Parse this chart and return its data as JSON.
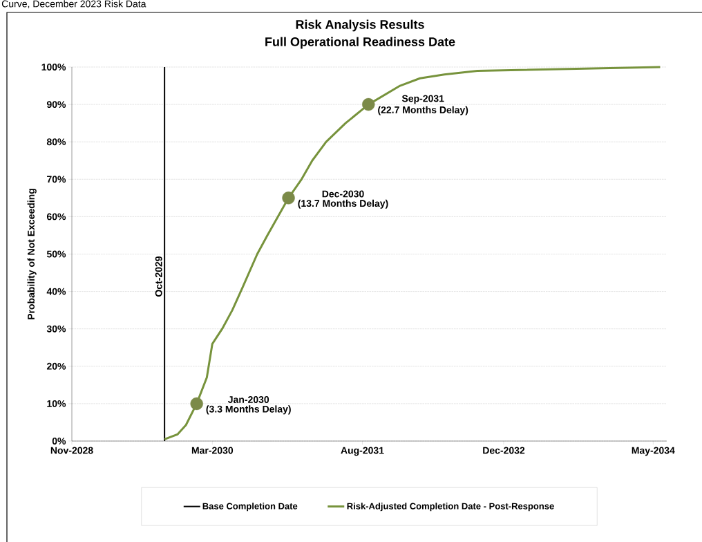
{
  "chart_data": {
    "type": "line",
    "title": "Risk Analysis Results",
    "subtitle": "Full Operational Readiness Date",
    "ylabel": "Probability of Not Exceeding",
    "xlim": [
      "2028-11-15",
      "2034-07-01"
    ],
    "xticks": [
      {
        "value": "2028-11-15",
        "label": "Nov-2028"
      },
      {
        "value": "2030-03-15",
        "label": "Mar-2030"
      },
      {
        "value": "2031-08-15",
        "label": "Aug-2031"
      },
      {
        "value": "2032-12-15",
        "label": "Dec-2032"
      },
      {
        "value": "2034-05-15",
        "label": "May-2034"
      }
    ],
    "ylim": [
      0,
      100
    ],
    "yticks": [
      {
        "value": 0,
        "label": "0%"
      },
      {
        "value": 10,
        "label": "10%"
      },
      {
        "value": 20,
        "label": "20%"
      },
      {
        "value": 30,
        "label": "30%"
      },
      {
        "value": 40,
        "label": "40%"
      },
      {
        "value": 50,
        "label": "50%"
      },
      {
        "value": 60,
        "label": "60%"
      },
      {
        "value": 70,
        "label": "70%"
      },
      {
        "value": 80,
        "label": "80%"
      },
      {
        "value": 90,
        "label": "90%"
      },
      {
        "value": 100,
        "label": "100%"
      }
    ],
    "grid": "y",
    "legend": "bottom",
    "series": [
      {
        "name": "Base Completion Date",
        "color": "#000000",
        "x": [
          "2029-10-01",
          "2029-10-01"
        ],
        "values": [
          0,
          100
        ]
      },
      {
        "name": "Risk-Adjusted Completion Date - Post-Response",
        "color": "#77933c",
        "x": [
          "2029-10-01",
          "2029-11-15",
          "2029-12-14",
          "2030-01-20",
          "2030-02-24",
          "2030-03-15",
          "2030-04-18",
          "2030-05-23",
          "2030-06-27",
          "2030-08-17",
          "2030-09-21",
          "2030-12-03",
          "2031-01-17",
          "2031-02-23",
          "2031-04-12",
          "2031-06-18",
          "2031-09-05",
          "2031-12-23",
          "2032-03-01",
          "2032-05-24",
          "2032-09-15",
          "2034-06-08"
        ],
        "values": [
          0.5,
          1.8,
          4.3,
          10,
          17,
          26,
          30,
          35,
          41,
          50,
          55,
          65,
          70,
          75,
          80,
          85,
          90,
          95,
          97,
          98,
          99,
          100
        ]
      },
      {
        "type": "scatter",
        "color": "#7b8a48",
        "x": [
          "2030-01-20",
          "2030-12-03",
          "2031-09-05"
        ],
        "values": [
          10,
          65,
          90
        ]
      }
    ],
    "annotations": [
      "Curve, December 2023 Risk Data",
      {
        "text": "Oct-2029",
        "x": "2029-10-01",
        "y": 44
      },
      "Jan-2030",
      {
        "text": "(3.3 Months Delay)",
        "x": "2030-01-20",
        "y": 10
      },
      "Dec-2030",
      {
        "text": "(13.7 Months Delay)",
        "x": "2030-12-03",
        "y": 65
      },
      "Sep-2031",
      {
        "text": "(22.7 Months Delay)",
        "x": "2031-09-05",
        "y": 90
      }
    ]
  }
}
